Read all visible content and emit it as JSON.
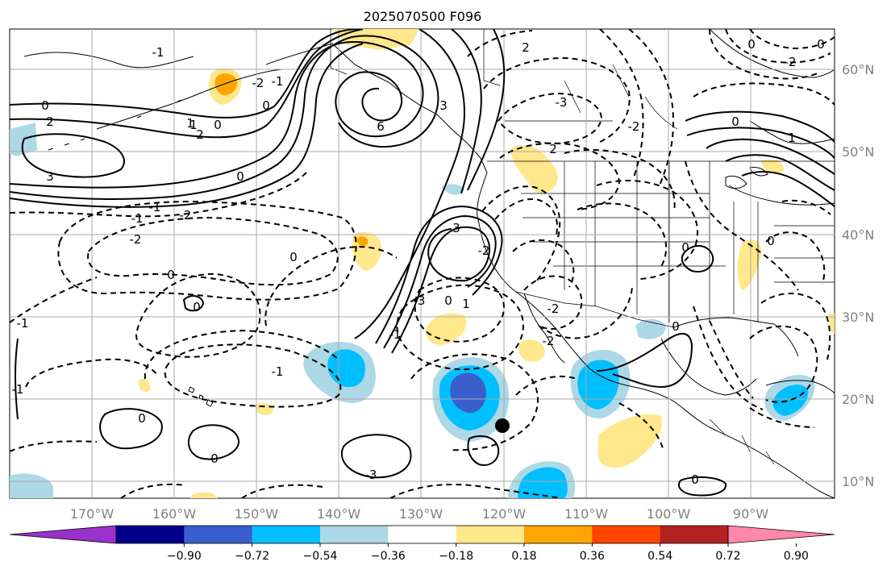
{
  "title": "2025070500 F096",
  "lon_labels": [
    "170°W",
    "160°W",
    "150°W",
    "140°W",
    "130°W",
    "120°W",
    "110°W",
    "100°W",
    "90°W"
  ],
  "lat_labels": [
    "60°N",
    "50°N",
    "40°N",
    "30°N",
    "20°N",
    "10°N"
  ],
  "colorbar": {
    "colors": [
      "#9932cc",
      "#00008b",
      "#3a5fcd",
      "#00bfff",
      "#add8e6",
      "#ffffff",
      "#ffe78c",
      "#ffa500",
      "#ff4500",
      "#b22222",
      "#ff88aa"
    ],
    "tick_labels": [
      "−0.90",
      "−0.72",
      "−0.54",
      "−0.36",
      "−0.18",
      "0.18",
      "0.36",
      "0.54",
      "0.72",
      "0.90"
    ]
  },
  "contour_labels": [
    "0",
    "2",
    "3",
    "1",
    "-1",
    "1",
    "2",
    "0",
    "-2",
    "0",
    "-1",
    "0",
    "6",
    "3",
    "-3",
    "2",
    "2",
    "3",
    "-1",
    "-1",
    "-2",
    "-2",
    "0",
    "0",
    "-1",
    "0",
    "-1",
    "-1",
    "0",
    "0",
    "-3",
    "-2",
    "-2",
    "0",
    "1",
    "-1",
    "-3",
    "-2",
    "0",
    "-2",
    "0",
    "-2",
    "0",
    "1",
    "0",
    "0",
    "0",
    "0"
  ],
  "markers": [
    {
      "name": "storm-dot"
    }
  ]
}
